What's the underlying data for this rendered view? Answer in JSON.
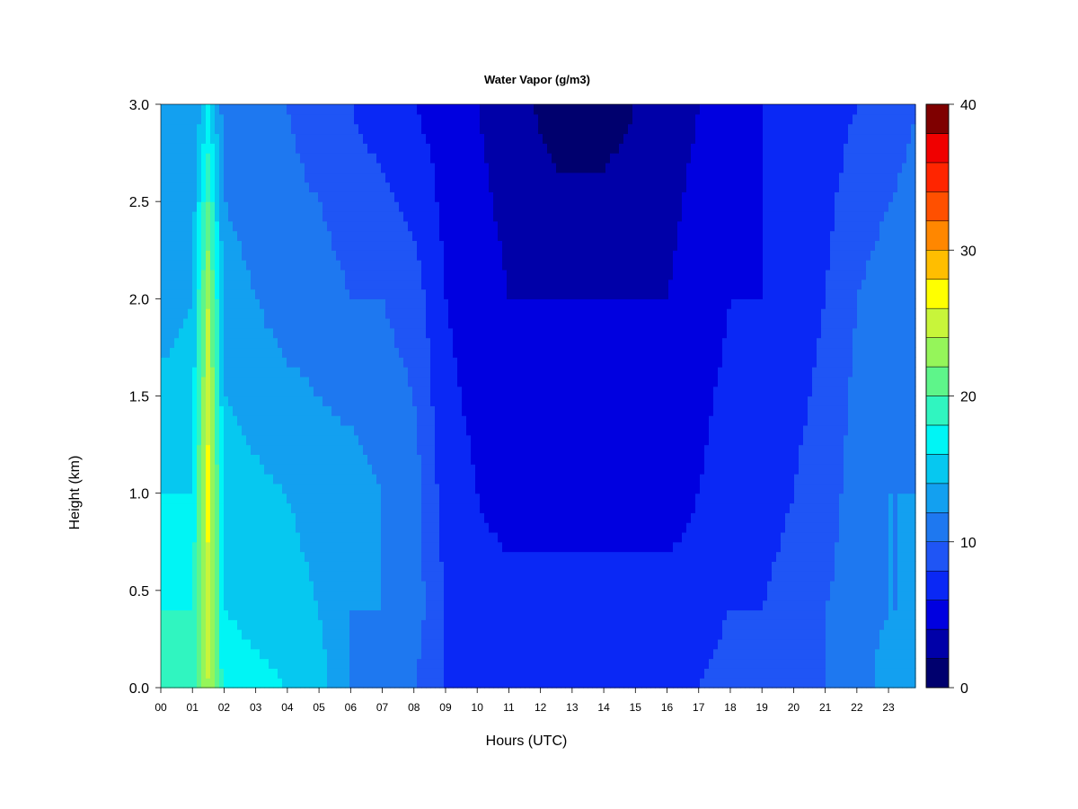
{
  "chart_data": {
    "type": "heatmap",
    "title": "Water Vapor (g/m3)",
    "xlabel": "Hours (UTC)",
    "ylabel": "Height (km)",
    "x_ticks": [
      "00",
      "01",
      "02",
      "03",
      "04",
      "05",
      "06",
      "07",
      "08",
      "09",
      "10",
      "11",
      "12",
      "13",
      "14",
      "15",
      "16",
      "17",
      "18",
      "19",
      "20",
      "21",
      "22",
      "23"
    ],
    "xlim": [
      0,
      23.85
    ],
    "y_ticks": [
      "0.0",
      "0.5",
      "1.0",
      "1.5",
      "2.0",
      "2.5",
      "3.0"
    ],
    "ylim": [
      0,
      3.0
    ],
    "colorbar": {
      "range": [
        0,
        40
      ],
      "tick_labels": [
        "0",
        "10",
        "20",
        "30",
        "40"
      ],
      "level_step": 2,
      "colors": [
        "#00006e",
        "#0000a8",
        "#0000e0",
        "#0a28f5",
        "#1f55f5",
        "#1e78f0",
        "#13a0f0",
        "#06c8f0",
        "#00f5f5",
        "#30f5c0",
        "#5ef58a",
        "#95f55a",
        "#c8f53a",
        "#ffff00",
        "#ffbe00",
        "#ff8700",
        "#ff5000",
        "#ff2500",
        "#f00000",
        "#c00000",
        "#7f0000"
      ]
    },
    "profiles": [
      {
        "hour": 0.0,
        "h": [
          0,
          0.4,
          1.0,
          2.0,
          3.0
        ],
        "v": [
          20,
          18,
          16,
          13,
          12
        ]
      },
      {
        "hour": 1.0,
        "h": [
          0,
          0.4,
          1.0,
          2.0,
          3.0
        ],
        "v": [
          19,
          18,
          16,
          14,
          12
        ]
      },
      {
        "hour": 1.5,
        "h": [
          0,
          0.4,
          1.0,
          2.0,
          3.0
        ],
        "v": [
          24,
          25,
          27,
          24,
          16
        ]
      },
      {
        "hour": 2.0,
        "h": [
          0,
          0.4,
          1.0,
          2.0,
          3.0
        ],
        "v": [
          17,
          16,
          15,
          13,
          11
        ]
      },
      {
        "hour": 4.0,
        "h": [
          0,
          0.4,
          1.0,
          2.0,
          3.0
        ],
        "v": [
          16,
          15,
          14,
          11,
          10
        ]
      },
      {
        "hour": 5.0,
        "h": [
          0,
          0.4,
          1.0,
          2.0,
          3.0
        ],
        "v": [
          15,
          14,
          13,
          11,
          9
        ]
      },
      {
        "hour": 6.0,
        "h": [
          0,
          0.4,
          1.0,
          2.0,
          3.0
        ],
        "v": [
          12,
          12,
          13,
          10,
          8
        ]
      },
      {
        "hour": 7.0,
        "h": [
          0,
          0.4,
          1.0,
          2.0,
          3.0
        ],
        "v": [
          11,
          12,
          12,
          10,
          7
        ]
      },
      {
        "hour": 8.0,
        "h": [
          0,
          0.4,
          1.0,
          2.0,
          3.0
        ],
        "v": [
          10,
          11,
          11,
          9,
          6
        ]
      },
      {
        "hour": 9.0,
        "h": [
          0,
          0.4,
          1.0,
          2.0,
          3.0
        ],
        "v": [
          8,
          8,
          7,
          6,
          5
        ]
      },
      {
        "hour": 10.0,
        "h": [
          0,
          0.4,
          1.0,
          2.0,
          3.0
        ],
        "v": [
          8,
          7,
          6,
          5,
          4
        ]
      },
      {
        "hour": 11.0,
        "h": [
          0,
          0.4,
          1.0,
          2.0,
          3.0
        ],
        "v": [
          8,
          7,
          5,
          4,
          3
        ]
      },
      {
        "hour": 12.5,
        "h": [
          0,
          0.4,
          1.0,
          2.0,
          3.0
        ],
        "v": [
          8,
          7,
          5,
          4,
          1
        ]
      },
      {
        "hour": 14.0,
        "h": [
          0,
          0.4,
          1.0,
          2.0,
          3.0
        ],
        "v": [
          8,
          7,
          5,
          4,
          1
        ]
      },
      {
        "hour": 16.0,
        "h": [
          0,
          0.4,
          1.0,
          2.0,
          3.0
        ],
        "v": [
          8,
          7,
          5,
          4,
          3
        ]
      },
      {
        "hour": 17.0,
        "h": [
          0,
          0.4,
          1.0,
          2.0,
          3.0
        ],
        "v": [
          8,
          7,
          6,
          5,
          4
        ]
      },
      {
        "hour": 18.0,
        "h": [
          0,
          0.4,
          1.0,
          2.0,
          3.0
        ],
        "v": [
          9,
          8,
          7,
          6,
          5
        ]
      },
      {
        "hour": 19.0,
        "h": [
          0,
          0.4,
          1.0,
          2.0,
          3.0
        ],
        "v": [
          8,
          8,
          7,
          6,
          6
        ]
      },
      {
        "hour": 20.0,
        "h": [
          0,
          0.4,
          1.0,
          2.0,
          3.0
        ],
        "v": [
          9,
          9,
          8,
          7,
          7
        ]
      },
      {
        "hour": 21.0,
        "h": [
          0,
          0.4,
          1.0,
          2.0,
          3.0
        ],
        "v": [
          10,
          10,
          9,
          8,
          7
        ]
      },
      {
        "hour": 22.0,
        "h": [
          0,
          0.4,
          1.0,
          2.0,
          3.0
        ],
        "v": [
          11,
          11,
          11,
          10,
          8
        ]
      },
      {
        "hour": 23.0,
        "h": [
          0,
          0.4,
          1.0,
          2.0,
          3.0
        ],
        "v": [
          13,
          12,
          12,
          11,
          9
        ]
      },
      {
        "hour": 23.85,
        "h": [
          0,
          0.4,
          1.0,
          2.0,
          3.0
        ],
        "v": [
          13,
          12,
          12,
          11,
          10
        ]
      }
    ]
  }
}
